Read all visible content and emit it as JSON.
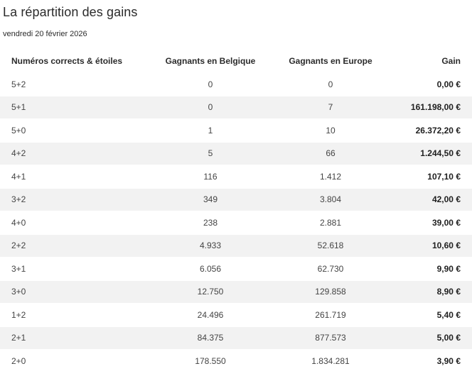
{
  "title": "La répartition des gains",
  "date": "vendredi 20 février 2026",
  "table": {
    "headers": {
      "combination": "Numéros corrects & étoiles",
      "winners_belgium": "Gagnants en Belgique",
      "winners_europe": "Gagnants en Europe",
      "gain": "Gain"
    },
    "rows": [
      {
        "combination": "5+2",
        "winners_belgium": "0",
        "winners_europe": "0",
        "gain": "0,00 €"
      },
      {
        "combination": "5+1",
        "winners_belgium": "0",
        "winners_europe": "7",
        "gain": "161.198,00 €"
      },
      {
        "combination": "5+0",
        "winners_belgium": "1",
        "winners_europe": "10",
        "gain": "26.372,20 €"
      },
      {
        "combination": "4+2",
        "winners_belgium": "5",
        "winners_europe": "66",
        "gain": "1.244,50 €"
      },
      {
        "combination": "4+1",
        "winners_belgium": "116",
        "winners_europe": "1.412",
        "gain": "107,10 €"
      },
      {
        "combination": "3+2",
        "winners_belgium": "349",
        "winners_europe": "3.804",
        "gain": "42,00 €"
      },
      {
        "combination": "4+0",
        "winners_belgium": "238",
        "winners_europe": "2.881",
        "gain": "39,00 €"
      },
      {
        "combination": "2+2",
        "winners_belgium": "4.933",
        "winners_europe": "52.618",
        "gain": "10,60 €"
      },
      {
        "combination": "3+1",
        "winners_belgium": "6.056",
        "winners_europe": "62.730",
        "gain": "9,90 €"
      },
      {
        "combination": "3+0",
        "winners_belgium": "12.750",
        "winners_europe": "129.858",
        "gain": "8,90 €"
      },
      {
        "combination": "1+2",
        "winners_belgium": "24.496",
        "winners_europe": "261.719",
        "gain": "5,40 €"
      },
      {
        "combination": "2+1",
        "winners_belgium": "84.375",
        "winners_europe": "877.573",
        "gain": "5,00 €"
      },
      {
        "combination": "2+0",
        "winners_belgium": "178.550",
        "winners_europe": "1.834.281",
        "gain": "3,90 €"
      }
    ]
  }
}
